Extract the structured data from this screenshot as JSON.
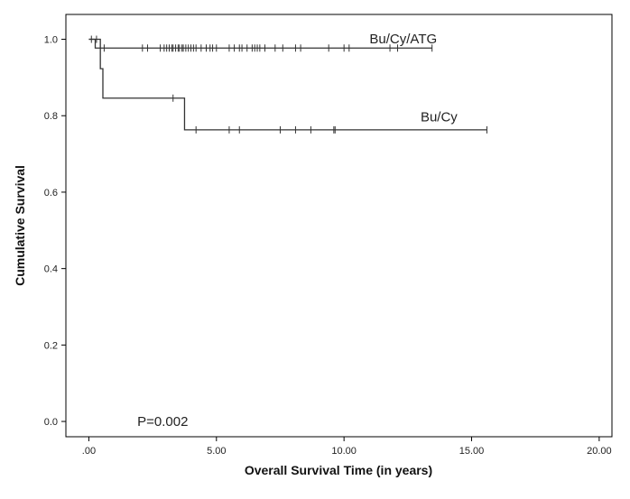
{
  "chart_data": {
    "type": "line",
    "step": true,
    "xlabel": "Overall Survival Time (in years)",
    "ylabel": "Cumulative Survival",
    "xlim": [
      -0.9,
      20.5
    ],
    "ylim": [
      -0.04,
      1.065
    ],
    "xticks": [
      0,
      5,
      10,
      15,
      20
    ],
    "xtick_labels": [
      ".00",
      "5.00",
      "10.00",
      "15.00",
      "20.00"
    ],
    "yticks": [
      0.0,
      0.2,
      0.4,
      0.6,
      0.8,
      1.0
    ],
    "ytick_labels": [
      "0.0",
      "0.2",
      "0.4",
      "0.6",
      "0.8",
      "1.0"
    ],
    "grid": false,
    "series": [
      {
        "name": "Bu/Cy/ATG",
        "color": "#333333",
        "steps": [
          [
            0,
            1.0
          ],
          [
            0.25,
            0.977
          ],
          [
            13.45,
            0.977
          ]
        ],
        "censored": [
          0.6,
          2.1,
          2.3,
          2.8,
          2.95,
          3.05,
          3.15,
          3.25,
          3.3,
          3.4,
          3.5,
          3.55,
          3.65,
          3.7,
          3.8,
          3.9,
          4.0,
          4.1,
          4.2,
          4.4,
          4.6,
          4.75,
          4.85,
          5.0,
          5.5,
          5.7,
          5.9,
          6.0,
          6.2,
          6.4,
          6.5,
          6.6,
          6.7,
          6.9,
          7.3,
          7.6,
          8.1,
          8.3,
          9.4,
          10.0,
          10.2,
          11.8,
          12.1,
          13.45
        ]
      },
      {
        "name": "Bu/Cy",
        "color": "#333333",
        "steps": [
          [
            0,
            1.0
          ],
          [
            0.45,
            0.923
          ],
          [
            0.55,
            0.846
          ],
          [
            3.75,
            0.763
          ],
          [
            15.6,
            0.763
          ]
        ],
        "censored": [
          0.1,
          0.3,
          3.3,
          4.2,
          5.5,
          5.9,
          7.5,
          8.1,
          8.7,
          9.6,
          9.65,
          15.6
        ]
      }
    ],
    "labels": [
      {
        "series": 0,
        "text": "Bu/Cy/ATG",
        "x": 11.0,
        "y": 0.99
      },
      {
        "series": 1,
        "text": "Bu/Cy",
        "x": 13.0,
        "y": 0.785
      }
    ],
    "annotation": {
      "text": "P=0.002",
      "x": 1.9,
      "y": 0.0
    }
  }
}
